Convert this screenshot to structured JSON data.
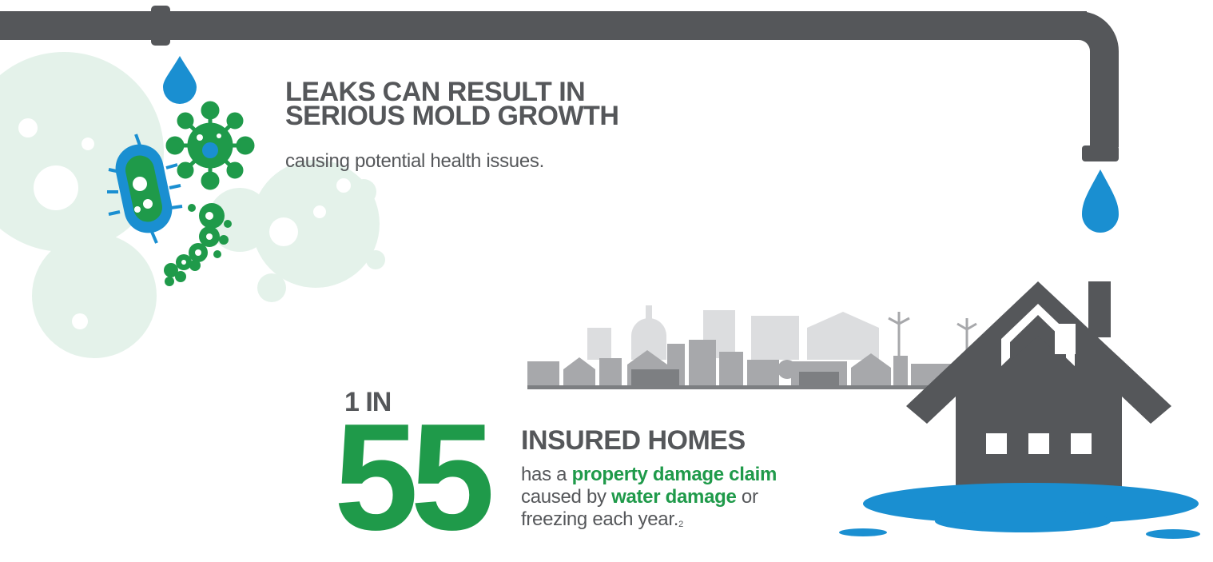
{
  "mold": {
    "heading_line1": "LEAKS CAN RESULT IN",
    "heading_line2": "SERIOUS MOLD GROWTH",
    "subtext": "causing potential health issues."
  },
  "stat": {
    "prefix": "1 IN",
    "number": "55",
    "heading": "INSURED HOMES",
    "line1_pre": "has a ",
    "line1_bold": "property damage claim",
    "line2_pre": "caused by ",
    "line2_bold": "water damage",
    "line2_post": " or",
    "line3": "freezing each year.",
    "footnote": "2"
  },
  "colors": {
    "pipe": "#55575a",
    "water": "#1a8fd1",
    "green": "#1f9a4a",
    "city": "#c8c9cb",
    "house": "#55575a"
  },
  "icons": [
    "pipe-icon",
    "water-drop-icon",
    "germ-icon",
    "bacteria-icon",
    "mold-spore-icon",
    "city-skyline-icon",
    "house-icon",
    "water-puddle-icon"
  ]
}
